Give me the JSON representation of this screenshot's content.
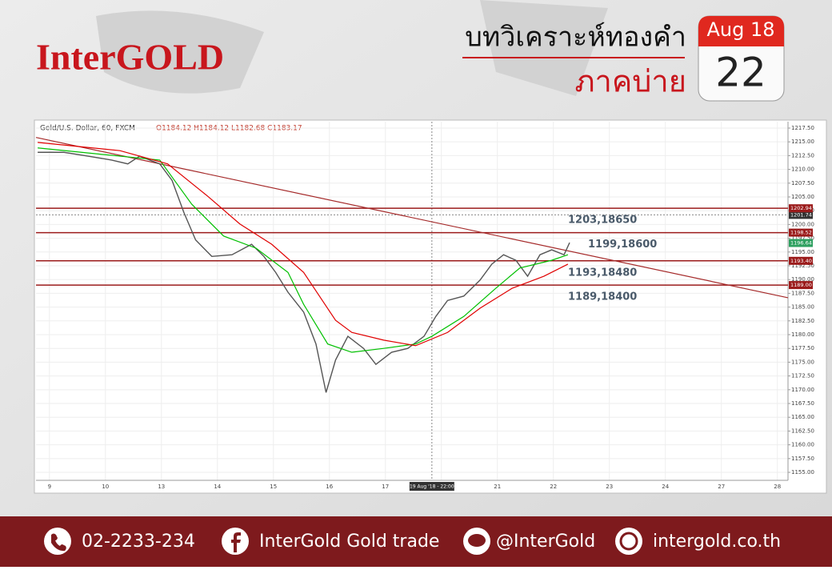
{
  "header": {
    "logo": "InterGOLD",
    "title": "บทวิเคราะห์ทองคำ",
    "subtitle": "ภาคบ่าย",
    "calendar_month": "Aug 18",
    "calendar_day": "22"
  },
  "chart_data": {
    "type": "line",
    "symbol": "Gold/U.S. Dollar, 60, FXCM",
    "ohlc": "O1184.12 H1184.12 L1182.68 C1183.17",
    "categories": [
      "9",
      "10",
      "13",
      "14",
      "15",
      "16",
      "17",
      null,
      "21",
      "22",
      "23",
      "24",
      "27",
      "28"
    ],
    "xlim": [
      -0.24,
      13.19
    ],
    "ylim": [
      1153.55,
      1218.66
    ],
    "yticks": [
      {
        "value": 1217.5,
        "label": "1217.50"
      },
      {
        "value": 1215,
        "label": "1215.00"
      },
      {
        "value": 1212.5,
        "label": "1212.50"
      },
      {
        "value": 1210,
        "label": "1210.00"
      },
      {
        "value": 1207.5,
        "label": "1207.50"
      },
      {
        "value": 1205,
        "label": "1205.00"
      },
      {
        "value": 1202.5,
        "label": "1202.50"
      },
      {
        "value": 1200,
        "label": "1200.00"
      },
      {
        "value": 1197.5,
        "label": "1197.50"
      },
      {
        "value": 1195,
        "label": "1195.00"
      },
      {
        "value": 1192.5,
        "label": "1192.50"
      },
      {
        "value": 1190,
        "label": "1190.00"
      },
      {
        "value": 1187.5,
        "label": "1187.50"
      },
      {
        "value": 1185,
        "label": "1185.00"
      },
      {
        "value": 1182.5,
        "label": "1182.50"
      },
      {
        "value": 1180,
        "label": "1180.00"
      },
      {
        "value": 1177.5,
        "label": "1177.50"
      },
      {
        "value": 1175,
        "label": "1175.00"
      },
      {
        "value": 1172.5,
        "label": "1172.50"
      },
      {
        "value": 1170,
        "label": "1170.00"
      },
      {
        "value": 1167.5,
        "label": "1167.50"
      },
      {
        "value": 1165,
        "label": "1165.00"
      },
      {
        "value": 1162.5,
        "label": "1162.50"
      },
      {
        "value": 1160,
        "label": "1160.00"
      },
      {
        "value": 1157.5,
        "label": "1157.50"
      },
      {
        "value": 1155,
        "label": "1155.00"
      }
    ],
    "grid": true,
    "series": [
      {
        "color": "#555555",
        "x": [
          -0.21,
          0.26,
          0.69,
          1.11,
          1.4,
          1.61,
          1.97,
          2.19,
          2.4,
          2.61,
          2.9,
          3.26,
          3.61,
          3.83,
          4.04,
          4.26,
          4.54,
          4.76,
          4.94,
          5.11,
          5.33,
          5.61,
          5.83,
          6.11,
          6.4,
          6.69,
          6.9,
          7.11,
          7.4,
          7.69,
          7.9,
          8.11,
          8.33,
          8.54,
          8.76,
          8.97,
          9.19,
          9.29
        ],
        "values": [
          1213.1,
          1213.1,
          1212.4,
          1211.7,
          1211,
          1212.4,
          1211,
          1208,
          1202.2,
          1197.2,
          1194.2,
          1194.5,
          1196.4,
          1194.2,
          1191.3,
          1187.7,
          1184.1,
          1178.3,
          1169.5,
          1175.4,
          1179.7,
          1177.5,
          1174.6,
          1176.8,
          1177.5,
          1179.7,
          1183.3,
          1186.2,
          1187,
          1189.9,
          1192.8,
          1194.5,
          1193.5,
          1190.6,
          1194.5,
          1195.4,
          1194.5,
          1196.7
        ]
      },
      {
        "color": "#00c000",
        "x": [
          -0.21,
          1.26,
          1.97,
          2.54,
          3.11,
          3.69,
          4.26,
          4.54,
          4.97,
          5.4,
          5.97,
          6.54,
          6.83,
          7.4,
          7.97,
          8.4,
          8.97,
          9.26
        ],
        "values": [
          1213.9,
          1212.4,
          1211.7,
          1203.7,
          1197.9,
          1195.7,
          1191.3,
          1185.5,
          1178.3,
          1176.8,
          1177.5,
          1178.3,
          1179.7,
          1183.3,
          1188.4,
          1192.1,
          1193.5,
          1194.5
        ]
      },
      {
        "color": "#e00000",
        "x": [
          -0.21,
          1.26,
          2.11,
          2.83,
          3.4,
          3.97,
          4.54,
          5.11,
          5.4,
          5.97,
          6.54,
          7.11,
          7.69,
          8.26,
          8.83,
          9.26
        ],
        "values": [
          1214.9,
          1213.4,
          1211,
          1205.1,
          1200.1,
          1196.4,
          1191.3,
          1182.6,
          1180.4,
          1179,
          1178,
          1180.4,
          1184.8,
          1188.4,
          1190.6,
          1192.8
        ]
      }
    ],
    "trendline": {
      "color": "#a52a2a",
      "x": [
        -0.24,
        13.19
      ],
      "values": [
        1215.8,
        1186.7
      ]
    },
    "levels": [
      {
        "value": 1202.94,
        "label": "1202.94",
        "note": "1203,18650"
      },
      {
        "value": 1198.52,
        "label": "1198.52",
        "note": "1199,18600"
      },
      {
        "value": 1193.4,
        "label": "1193.40",
        "note": "1193,18480"
      },
      {
        "value": 1189,
        "label": "1189.00",
        "note": "1189,18400"
      }
    ],
    "level_color": "#9b1b1b",
    "price_tags": [
      {
        "value": 1201.74,
        "label": "1201.74"
      },
      {
        "value": 1196.64,
        "label": "1196.64"
      }
    ],
    "crosshair": {
      "x": 6.83,
      "label": "19 Aug '18 - 22:00"
    }
  },
  "footer": {
    "phone": "02-2233-234",
    "facebook": "InterGold Gold trade",
    "line": "@InterGold",
    "website": "intergold.co.th"
  }
}
